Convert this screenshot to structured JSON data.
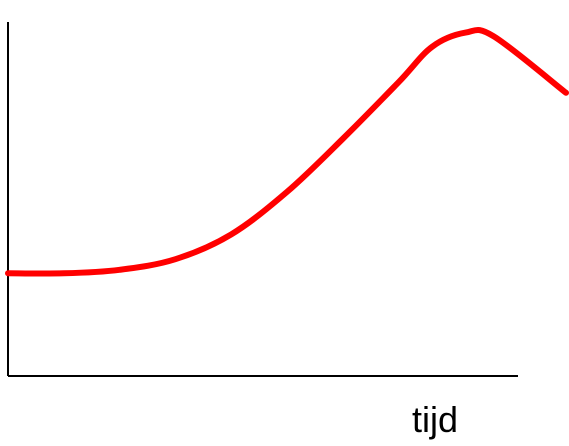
{
  "chart_data": {
    "type": "line",
    "xlabel": "tijd",
    "ylabel": "",
    "series": [
      {
        "color": "#ff0000",
        "x": [
          0,
          0.1,
          0.2,
          0.3,
          0.4,
          0.5,
          0.6,
          0.7,
          0.76,
          0.82,
          0.87,
          1.0
        ],
        "y": [
          0.29,
          0.29,
          0.3,
          0.33,
          0.4,
          0.52,
          0.67,
          0.83,
          0.93,
          0.97,
          0.96,
          0.8
        ]
      }
    ],
    "grid": false,
    "legend": "none"
  }
}
